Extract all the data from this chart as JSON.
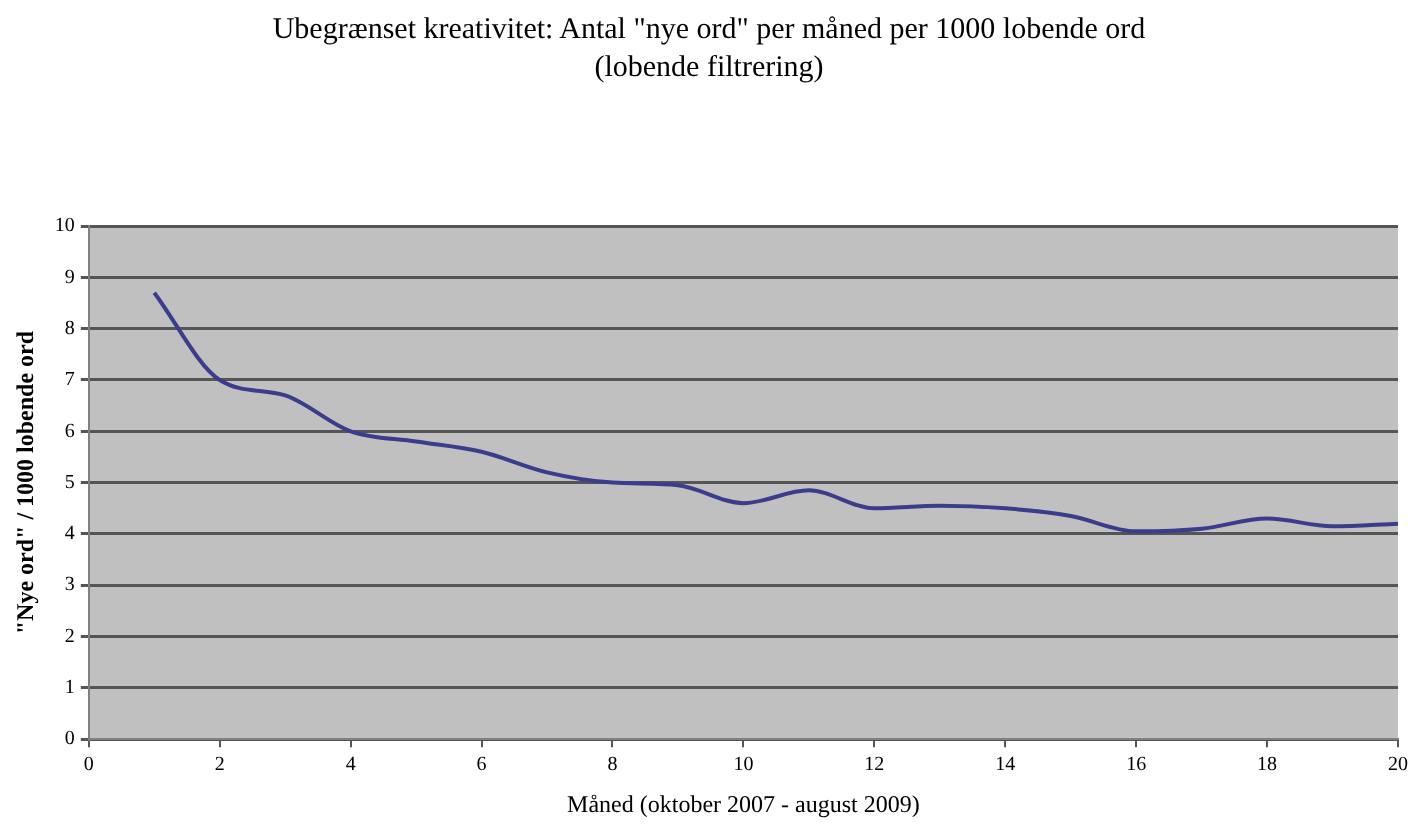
{
  "chart_data": {
    "type": "line",
    "title": "Ubegrænset kreativitet: Antal \"nye ord\" per måned per 1000 lobende ord",
    "subtitle": "(lobende filtrering)",
    "xlabel": "Måned (oktober 2007 - august 2009)",
    "ylabel": "\"Nye ord\" / 1000 lobende ord",
    "x": [
      1,
      2,
      3,
      4,
      5,
      6,
      7,
      8,
      9,
      10,
      11,
      12,
      13,
      14,
      15,
      16,
      17,
      18,
      19,
      20
    ],
    "series": [
      {
        "color": "#3c3c8c",
        "values": [
          8.7,
          7.0,
          6.7,
          6.0,
          5.8,
          5.6,
          5.2,
          5.0,
          4.95,
          4.6,
          4.85,
          4.5,
          4.55,
          4.5,
          4.35,
          4.05,
          4.1,
          4.3,
          4.15,
          4.2
        ]
      }
    ],
    "xlim": [
      0,
      20
    ],
    "xticks": [
      0,
      2,
      4,
      6,
      8,
      10,
      12,
      14,
      16,
      18,
      20
    ],
    "ylim": [
      0,
      10
    ],
    "yticks": [
      0,
      1,
      2,
      3,
      4,
      5,
      6,
      7,
      8,
      9,
      10
    ],
    "grid": "y",
    "legend": false,
    "marker": "none",
    "line_style": "solid"
  }
}
